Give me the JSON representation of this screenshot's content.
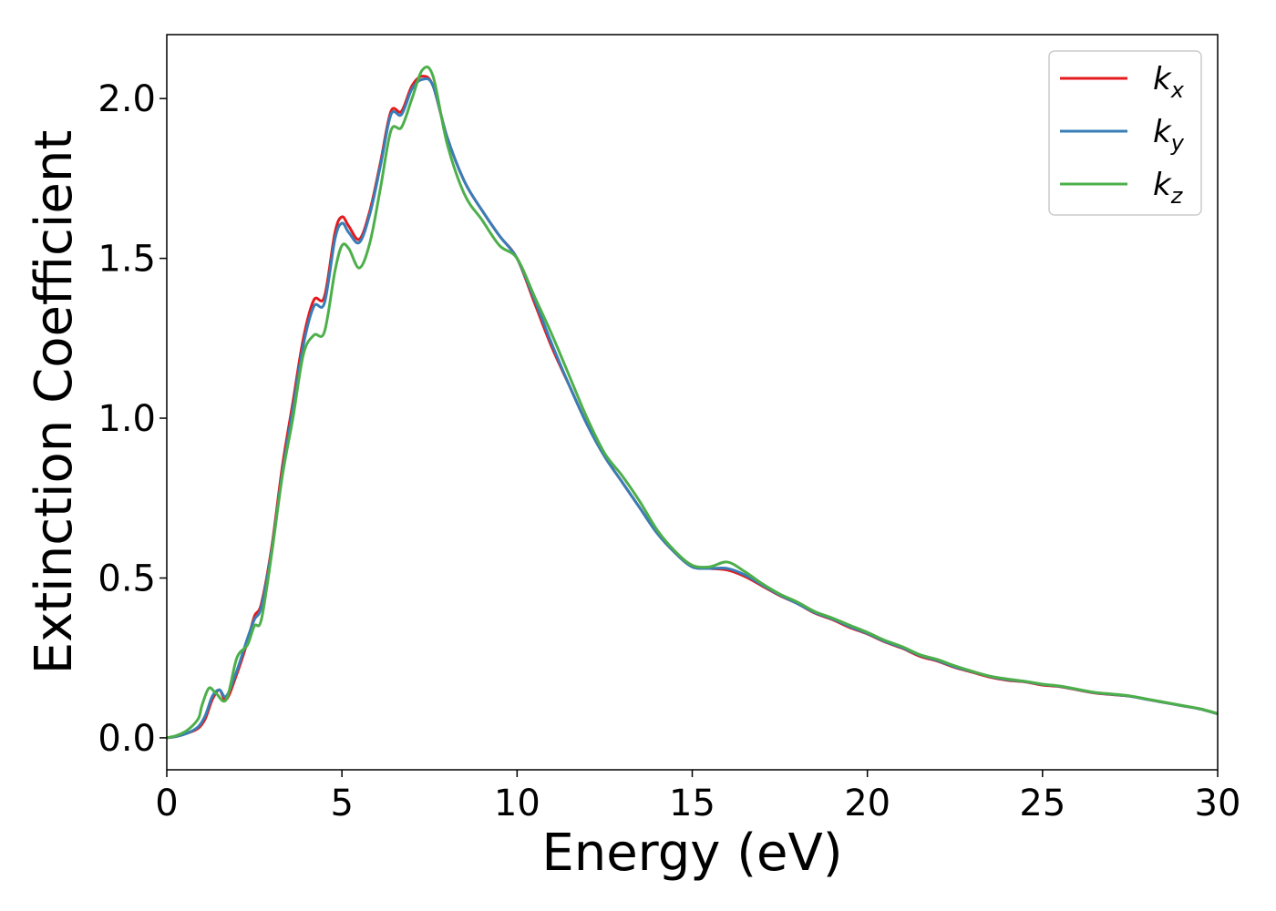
{
  "chart_data": {
    "type": "line",
    "xlabel": "Energy (eV)",
    "ylabel": "Extinction Coefficient",
    "xlim": [
      0,
      30
    ],
    "ylim": [
      -0.1,
      2.2
    ],
    "xticks": [
      0,
      5,
      10,
      15,
      20,
      25,
      30
    ],
    "xtick_labels": [
      "0",
      "5",
      "10",
      "15",
      "20",
      "25",
      "30"
    ],
    "yticks": [
      0.0,
      0.5,
      1.0,
      1.5,
      2.0
    ],
    "ytick_labels": [
      "0.0",
      "0.5",
      "1.0",
      "1.5",
      "2.0"
    ],
    "grid": false,
    "legend_position": "top-right",
    "series": [
      {
        "name": "k_x",
        "label_base": "k",
        "label_sub": "x",
        "color": "#e41a1c",
        "x": [
          0,
          0.3,
          0.6,
          0.9,
          1.1,
          1.3,
          1.5,
          1.7,
          2.0,
          2.3,
          2.5,
          2.7,
          3.0,
          3.3,
          3.6,
          3.9,
          4.2,
          4.5,
          4.8,
          5.0,
          5.2,
          5.5,
          5.8,
          6.1,
          6.4,
          6.7,
          7.0,
          7.3,
          7.6,
          8.0,
          8.5,
          9.0,
          9.5,
          10.0,
          10.5,
          11.0,
          11.5,
          12.0,
          12.5,
          13.0,
          13.5,
          14.0,
          14.5,
          15.0,
          15.5,
          16.0,
          16.5,
          17.0,
          17.5,
          18.0,
          18.5,
          19.0,
          19.5,
          20.0,
          20.5,
          21.0,
          21.5,
          22.0,
          22.5,
          23.0,
          23.5,
          24.0,
          24.5,
          25.0,
          25.5,
          26.0,
          26.5,
          27.0,
          27.5,
          28.0,
          28.5,
          29.0,
          29.5,
          30.0
        ],
        "y": [
          0.0,
          0.005,
          0.015,
          0.03,
          0.06,
          0.12,
          0.15,
          0.12,
          0.2,
          0.3,
          0.38,
          0.42,
          0.6,
          0.85,
          1.05,
          1.25,
          1.37,
          1.38,
          1.58,
          1.63,
          1.6,
          1.56,
          1.65,
          1.8,
          1.96,
          1.96,
          2.04,
          2.07,
          2.04,
          1.88,
          1.74,
          1.65,
          1.57,
          1.5,
          1.36,
          1.22,
          1.1,
          0.98,
          0.88,
          0.8,
          0.72,
          0.64,
          0.58,
          0.535,
          0.53,
          0.525,
          0.505,
          0.475,
          0.445,
          0.42,
          0.39,
          0.37,
          0.345,
          0.325,
          0.3,
          0.28,
          0.255,
          0.24,
          0.22,
          0.205,
          0.19,
          0.18,
          0.175,
          0.165,
          0.16,
          0.15,
          0.14,
          0.135,
          0.13,
          0.12,
          0.11,
          0.1,
          0.09,
          0.075
        ]
      },
      {
        "name": "k_y",
        "label_base": "k",
        "label_sub": "y",
        "color": "#377eb8",
        "x": [
          0,
          0.3,
          0.6,
          0.9,
          1.1,
          1.3,
          1.5,
          1.7,
          2.0,
          2.3,
          2.5,
          2.7,
          3.0,
          3.3,
          3.6,
          3.9,
          4.2,
          4.5,
          4.8,
          5.0,
          5.2,
          5.5,
          5.8,
          6.1,
          6.4,
          6.7,
          7.0,
          7.3,
          7.6,
          8.0,
          8.5,
          9.0,
          9.5,
          10.0,
          10.5,
          11.0,
          11.5,
          12.0,
          12.5,
          13.0,
          13.5,
          14.0,
          14.5,
          15.0,
          15.5,
          16.0,
          16.5,
          17.0,
          17.5,
          18.0,
          18.5,
          19.0,
          19.5,
          20.0,
          20.5,
          21.0,
          21.5,
          22.0,
          22.5,
          23.0,
          23.5,
          24.0,
          24.5,
          25.0,
          25.5,
          26.0,
          26.5,
          27.0,
          27.5,
          28.0,
          28.5,
          29.0,
          29.5,
          30.0
        ],
        "y": [
          0.0,
          0.005,
          0.015,
          0.035,
          0.07,
          0.13,
          0.15,
          0.13,
          0.21,
          0.31,
          0.37,
          0.41,
          0.59,
          0.83,
          1.03,
          1.23,
          1.35,
          1.36,
          1.56,
          1.61,
          1.58,
          1.55,
          1.64,
          1.79,
          1.95,
          1.95,
          2.03,
          2.06,
          2.04,
          1.88,
          1.74,
          1.65,
          1.57,
          1.5,
          1.37,
          1.23,
          1.1,
          0.98,
          0.88,
          0.8,
          0.72,
          0.64,
          0.58,
          0.535,
          0.53,
          0.53,
          0.51,
          0.478,
          0.447,
          0.42,
          0.392,
          0.372,
          0.348,
          0.327,
          0.302,
          0.282,
          0.258,
          0.242,
          0.222,
          0.207,
          0.192,
          0.182,
          0.176,
          0.167,
          0.161,
          0.151,
          0.141,
          0.136,
          0.13,
          0.12,
          0.11,
          0.1,
          0.09,
          0.075
        ]
      },
      {
        "name": "k_z",
        "label_base": "k",
        "label_sub": "z",
        "color": "#4daf4a",
        "x": [
          0,
          0.3,
          0.6,
          0.9,
          1.0,
          1.2,
          1.4,
          1.7,
          2.0,
          2.3,
          2.5,
          2.7,
          3.0,
          3.3,
          3.6,
          3.9,
          4.2,
          4.5,
          4.8,
          5.0,
          5.2,
          5.5,
          5.8,
          6.1,
          6.4,
          6.7,
          7.0,
          7.3,
          7.6,
          8.0,
          8.5,
          9.0,
          9.5,
          10.0,
          10.5,
          11.0,
          11.5,
          12.0,
          12.5,
          13.0,
          13.5,
          14.0,
          14.5,
          15.0,
          15.5,
          16.0,
          16.5,
          17.0,
          17.5,
          18.0,
          18.5,
          19.0,
          19.5,
          20.0,
          20.5,
          21.0,
          21.5,
          22.0,
          22.5,
          23.0,
          23.5,
          24.0,
          24.5,
          25.0,
          25.5,
          26.0,
          26.5,
          27.0,
          27.5,
          28.0,
          28.5,
          29.0,
          29.5,
          30.0
        ],
        "y": [
          0.0,
          0.008,
          0.025,
          0.06,
          0.1,
          0.155,
          0.14,
          0.12,
          0.25,
          0.29,
          0.35,
          0.37,
          0.58,
          0.82,
          1.0,
          1.2,
          1.26,
          1.27,
          1.46,
          1.54,
          1.53,
          1.47,
          1.55,
          1.72,
          1.9,
          1.91,
          2.0,
          2.09,
          2.07,
          1.86,
          1.7,
          1.62,
          1.54,
          1.5,
          1.38,
          1.26,
          1.13,
          1.0,
          0.89,
          0.82,
          0.74,
          0.65,
          0.585,
          0.54,
          0.535,
          0.55,
          0.52,
          0.482,
          0.45,
          0.425,
          0.395,
          0.375,
          0.352,
          0.33,
          0.305,
          0.285,
          0.26,
          0.245,
          0.225,
          0.208,
          0.193,
          0.184,
          0.177,
          0.168,
          0.162,
          0.152,
          0.142,
          0.137,
          0.131,
          0.121,
          0.111,
          0.101,
          0.091,
          0.076
        ]
      }
    ]
  }
}
